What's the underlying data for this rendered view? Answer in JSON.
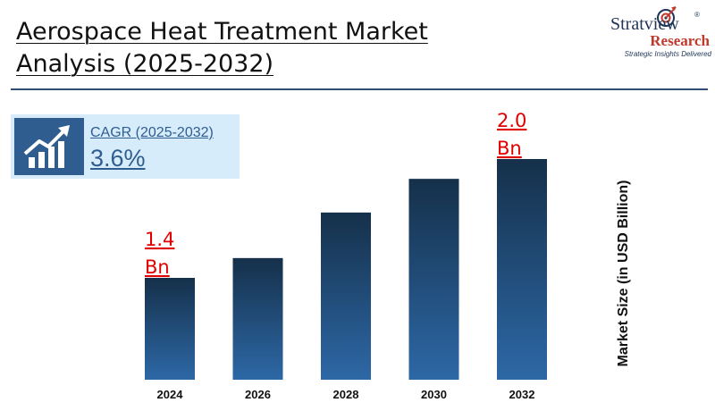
{
  "header": {
    "title_line1": "Aerospace Heat Treatment Market",
    "title_line2": "Analysis (2025-2032)"
  },
  "logo": {
    "name_top": "Stratview",
    "name_bottom": "Research",
    "tagline": "Strategic Insights Delivered",
    "registered_mark": "®"
  },
  "cagr": {
    "label": "CAGR (2025-2032)",
    "value": "3.6%",
    "icon": "growth-chart-icon"
  },
  "colors": {
    "bar_top": "#15304a",
    "bar_bottom": "#2d68a6",
    "data_label": "#e00000",
    "accent": "#2f5d8f",
    "rule": "#2e4f73"
  },
  "chart_data": {
    "type": "bar",
    "categories": [
      "2024",
      "2026",
      "2028",
      "2030",
      "2032"
    ],
    "values": [
      1.4,
      1.5,
      1.73,
      1.9,
      2.0
    ],
    "ylabel": "Market Size (in USD Billion)",
    "ylim": [
      0,
      2.0
    ],
    "data_labels": [
      {
        "index": 0,
        "line1": "1.4",
        "line2": "Bn"
      },
      {
        "index": 4,
        "line1": "2.0",
        "line2": "Bn"
      }
    ],
    "grid": false
  }
}
